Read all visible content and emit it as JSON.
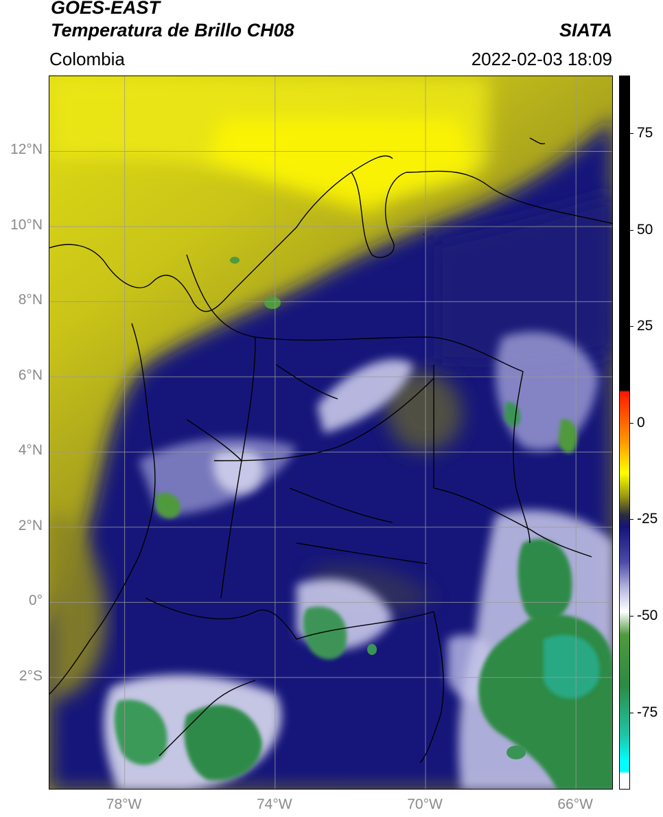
{
  "header": {
    "satellite": "GOES-EAST",
    "product": "Temperatura de Brillo CH08",
    "source": "SIATA",
    "region": "Colombia",
    "timestamp": "2022-02-03 18:09"
  },
  "map": {
    "lat_labels": [
      "12°N",
      "10°N",
      "8°N",
      "6°N",
      "4°N",
      "2°N",
      "0°",
      "2°S"
    ],
    "lat_values": [
      12,
      10,
      8,
      6,
      4,
      2,
      0,
      -2
    ],
    "lon_labels": [
      "78°W",
      "74°W",
      "70°W",
      "66°W"
    ],
    "lon_values": [
      -78,
      -74,
      -70,
      -66
    ],
    "extent": {
      "lon_min": -80,
      "lon_max": -65,
      "lat_min": -5,
      "lat_max": 14
    },
    "gridline_color": "#9a9a9a",
    "border_color": "#000000"
  },
  "colorbar": {
    "labels": [
      "75",
      "50",
      "25",
      "0",
      "-25",
      "-50",
      "-75"
    ],
    "values": [
      75,
      50,
      25,
      0,
      -25,
      -50,
      -75
    ],
    "range": [
      -95,
      90
    ],
    "stops": [
      {
        "value": 90,
        "color": "#000000"
      },
      {
        "value": 8.5,
        "color": "#000000"
      },
      {
        "value": 8,
        "color": "#ff1a00"
      },
      {
        "value": -5,
        "color": "#ff9900"
      },
      {
        "value": -13,
        "color": "#ffff00"
      },
      {
        "value": -19,
        "color": "#9a9a10"
      },
      {
        "value": -24,
        "color": "#2a2a40"
      },
      {
        "value": -27,
        "color": "#14147a"
      },
      {
        "value": -36,
        "color": "#4a4aa8"
      },
      {
        "value": -43,
        "color": "#b8b8e0"
      },
      {
        "value": -49,
        "color": "#ffffff"
      },
      {
        "value": -55,
        "color": "#4f9a3e"
      },
      {
        "value": -68,
        "color": "#2d8a44"
      },
      {
        "value": -81,
        "color": "#1fc4a8"
      },
      {
        "value": -88,
        "color": "#00ffff"
      },
      {
        "value": -90.5,
        "color": "#00ffff"
      },
      {
        "value": -91,
        "color": "#ffffff"
      },
      {
        "value": -95,
        "color": "#ffffff"
      }
    ]
  }
}
